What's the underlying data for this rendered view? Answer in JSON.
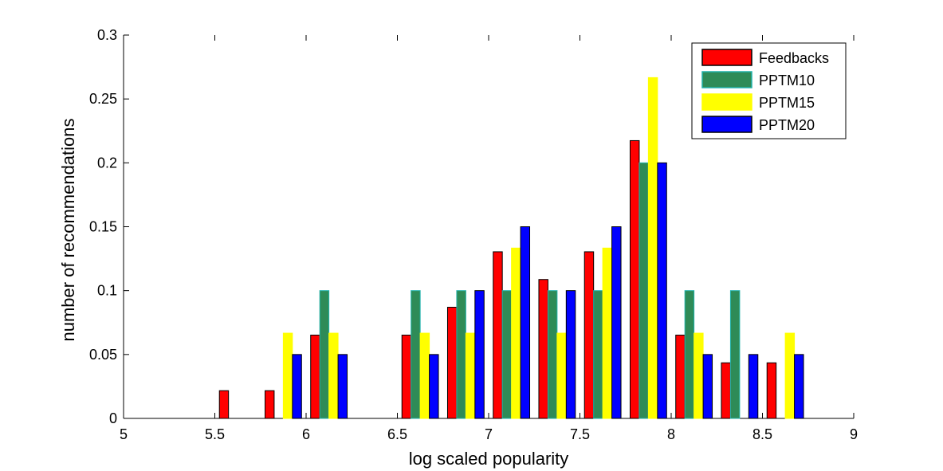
{
  "chart_data": {
    "type": "bar",
    "xlabel": "log scaled popularity",
    "ylabel": "number of recommendations",
    "xlim": [
      5,
      9
    ],
    "ylim": [
      0,
      0.3
    ],
    "x_ticks": [
      "5",
      "5.5",
      "6",
      "6.5",
      "7",
      "7.5",
      "8",
      "8.5",
      "9"
    ],
    "y_ticks": [
      "0",
      "0.05",
      "0.1",
      "0.15",
      "0.2",
      "0.25",
      "0.3"
    ],
    "grid": false,
    "legend_position": "top-right",
    "x": [
      5.125,
      5.375,
      5.625,
      5.875,
      6.125,
      6.375,
      6.625,
      6.875,
      7.125,
      7.375,
      7.625,
      7.875,
      8.125,
      8.375,
      8.625,
      8.875
    ],
    "series": [
      {
        "name": "Feedbacks",
        "color": "#ff0000",
        "edge": "#000000",
        "values": [
          0,
          0,
          0.0217,
          0.0217,
          0.0652,
          0,
          0.0652,
          0.087,
          0.1304,
          0.1087,
          0.1304,
          0.2174,
          0.0652,
          0.0435,
          0.0435,
          0
        ]
      },
      {
        "name": "PPTM10",
        "color": "#2e8b57",
        "edge": "#20b2aa",
        "values": [
          0,
          0,
          0,
          0,
          0.1,
          0,
          0.1,
          0.1,
          0.1,
          0.1,
          0.1,
          0.2,
          0.1,
          0.1,
          0,
          0
        ]
      },
      {
        "name": "PPTM15",
        "color": "#ffff00",
        "edge": "#ffff00",
        "values": [
          0,
          0,
          0,
          0.0667,
          0.0667,
          0,
          0.0667,
          0.0667,
          0.1333,
          0.0667,
          0.1333,
          0.2667,
          0.0667,
          0,
          0.0667,
          0
        ]
      },
      {
        "name": "PPTM20",
        "color": "#0000ff",
        "edge": "#000000",
        "values": [
          0,
          0,
          0,
          0.05,
          0.05,
          0,
          0.05,
          0.1,
          0.15,
          0.1,
          0.15,
          0.2,
          0.05,
          0.05,
          0.05,
          0
        ]
      }
    ]
  }
}
